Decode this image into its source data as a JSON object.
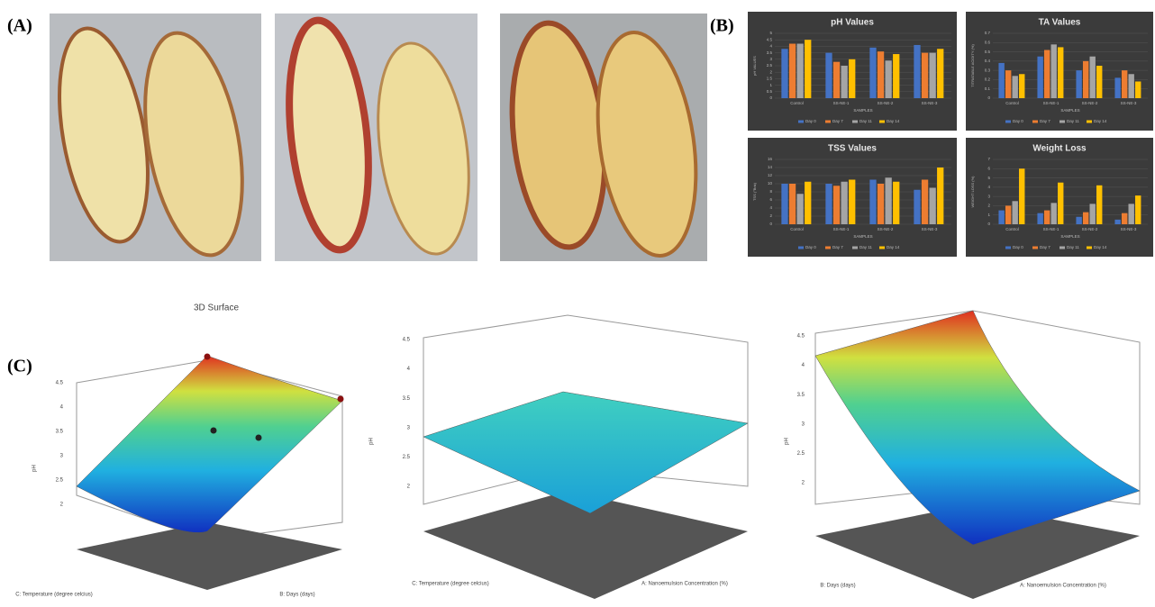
{
  "panel_labels": [
    "(A)",
    "(B)",
    "(C)"
  ],
  "chart_data": [
    {
      "type": "bar",
      "title": "pH Values",
      "x_label": "SAMPLES",
      "y_label": "pH VALUES",
      "categories": [
        "Control",
        "SS-NE-1",
        "SS-NE-2",
        "SS-NE-3"
      ],
      "series": [
        {
          "name": "Day 0",
          "color": "#4472c4",
          "values": [
            3.8,
            3.5,
            3.9,
            4.1
          ]
        },
        {
          "name": "Day 7",
          "color": "#ed7d31",
          "values": [
            4.2,
            2.8,
            3.6,
            3.5
          ]
        },
        {
          "name": "Day 11",
          "color": "#a5a5a5",
          "values": [
            4.2,
            2.5,
            2.9,
            3.5
          ]
        },
        {
          "name": "Day 14",
          "color": "#ffc000",
          "values": [
            4.5,
            3.0,
            3.4,
            3.8
          ]
        }
      ],
      "ylim": [
        0,
        5
      ],
      "yticks": [
        0,
        0.5,
        1,
        1.5,
        2,
        2.5,
        3,
        3.5,
        4,
        4.5,
        5
      ],
      "grid": true
    },
    {
      "type": "bar",
      "title": "TA Values",
      "x_label": "SAMPLES",
      "y_label": "TITRATABLE ACIDITY (%)",
      "categories": [
        "Control",
        "SS-NE-1",
        "SS-NE-2",
        "SS-NE-3"
      ],
      "series": [
        {
          "name": "Day 0",
          "color": "#4472c4",
          "values": [
            0.38,
            0.45,
            0.3,
            0.22
          ]
        },
        {
          "name": "Day 7",
          "color": "#ed7d31",
          "values": [
            0.3,
            0.52,
            0.4,
            0.3
          ]
        },
        {
          "name": "Day 11",
          "color": "#a5a5a5",
          "values": [
            0.24,
            0.58,
            0.45,
            0.26
          ]
        },
        {
          "name": "Day 14",
          "color": "#ffc000",
          "values": [
            0.26,
            0.55,
            0.35,
            0.18
          ]
        }
      ],
      "ylim": [
        0,
        0.7
      ],
      "yticks": [
        0,
        0.1,
        0.2,
        0.3,
        0.4,
        0.5,
        0.6,
        0.7
      ],
      "grid": true
    },
    {
      "type": "bar",
      "title": "TSS Values",
      "x_label": "SAMPLES",
      "y_label": "TSS (°Brix)",
      "categories": [
        "Control",
        "SS-NE-1",
        "SS-NE-2",
        "SS-NE-3"
      ],
      "series": [
        {
          "name": "Day 0",
          "color": "#4472c4",
          "values": [
            10,
            10,
            11,
            8.5
          ]
        },
        {
          "name": "Day 7",
          "color": "#ed7d31",
          "values": [
            10,
            9.5,
            10,
            11
          ]
        },
        {
          "name": "Day 11",
          "color": "#a5a5a5",
          "values": [
            7.5,
            10.5,
            11.5,
            9
          ]
        },
        {
          "name": "Day 14",
          "color": "#ffc000",
          "values": [
            10.5,
            11,
            10.5,
            14
          ]
        }
      ],
      "ylim": [
        0,
        16
      ],
      "yticks": [
        0,
        2,
        4,
        6,
        8,
        10,
        12,
        14,
        16
      ],
      "grid": true
    },
    {
      "type": "bar",
      "title": "Weight Loss",
      "x_label": "SAMPLES",
      "y_label": "WEIGHT LOSS (%)",
      "categories": [
        "Control",
        "SS-NE-1",
        "SS-NE-2",
        "SS-NE-3"
      ],
      "series": [
        {
          "name": "Day 0",
          "color": "#4472c4",
          "values": [
            1.5,
            1.2,
            0.8,
            0.5
          ]
        },
        {
          "name": "Day 7",
          "color": "#ed7d31",
          "values": [
            2,
            1.5,
            1.3,
            1.2
          ]
        },
        {
          "name": "Day 11",
          "color": "#a5a5a5",
          "values": [
            2.5,
            2.3,
            2.2,
            2.2
          ]
        },
        {
          "name": "Day 14",
          "color": "#ffc000",
          "values": [
            6,
            4.5,
            4.2,
            3.1
          ]
        }
      ],
      "ylim": [
        0,
        7
      ],
      "yticks": [
        0,
        1,
        2,
        3,
        4,
        5,
        6,
        7
      ],
      "grid": true
    }
  ],
  "surfaces": [
    {
      "title": "3D Surface",
      "z_label": "pH",
      "z_ticks": [
        "2",
        "2.5",
        "3",
        "3.5",
        "4",
        "4.5"
      ],
      "left_axis": "C: Temperature (degree celcius)",
      "right_axis": "B: Days (days)"
    },
    {
      "z_label": "pH",
      "z_ticks": [
        "2",
        "2.5",
        "3",
        "3.5",
        "4",
        "4.5"
      ],
      "left_axis": "C: Temperature (degree celcius)",
      "right_axis": "A: Nanoemulsion Concentration (%)"
    },
    {
      "z_label": "pH",
      "z_ticks": [
        "2",
        "2.5",
        "3",
        "3.5",
        "4",
        "4.5"
      ],
      "left_axis": "B: Days (days)",
      "right_axis": "A: Nanoemulsion Concentration (%)"
    }
  ]
}
